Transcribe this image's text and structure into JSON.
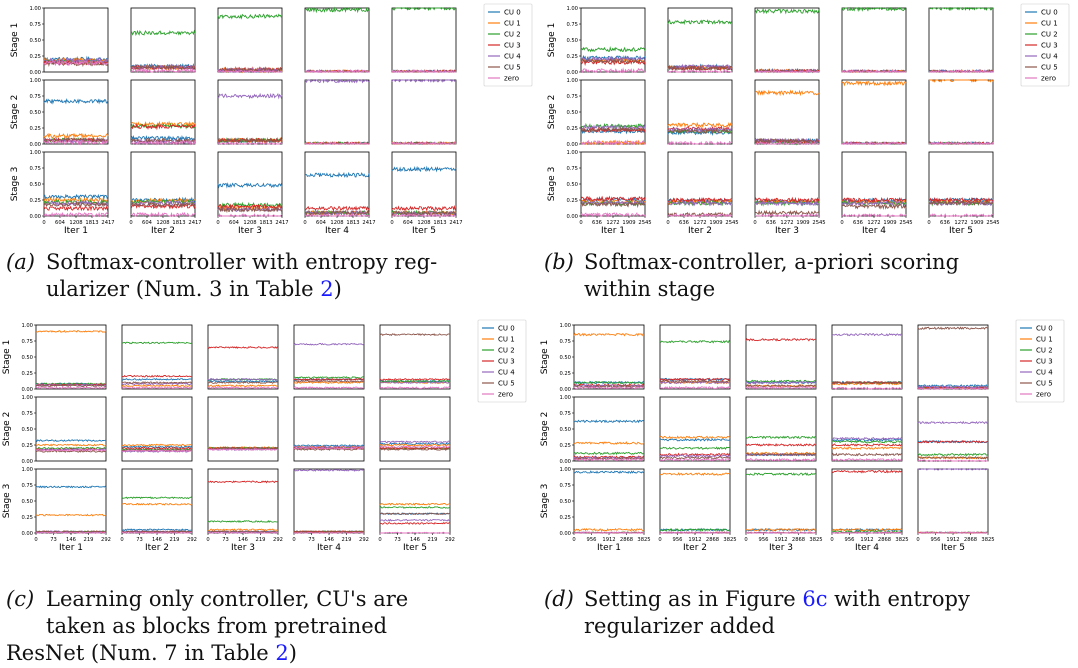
{
  "series_colors": [
    "#1f77b4",
    "#ff7f0e",
    "#2ca02c",
    "#d62728",
    "#9467bd",
    "#8c564b",
    "#e377c2"
  ],
  "legend": [
    "CU 0",
    "CU 1",
    "CU 2",
    "CU 3",
    "CU 4",
    "CU 5",
    "zero"
  ],
  "row_labels": [
    "Stage 1",
    "Stage 2",
    "Stage 3"
  ],
  "col_labels": [
    "Iter 1",
    "Iter 2",
    "Iter 3",
    "Iter 4",
    "Iter 5"
  ],
  "captions": [
    {
      "label": "(a)",
      "lines": [
        "Softmax-controller with entropy reg-",
        "ularizer (Num. 3 in Table 2)"
      ]
    },
    {
      "label": "(b)",
      "lines": [
        "Softmax-controller,  a-priori scoring",
        "within stage"
      ]
    },
    {
      "label": "(c)",
      "lines": [
        "Learning only controller, CU's are",
        "taken  as  blocks  from  pretrained",
        "ResNet (Num. 7 in Table 2)"
      ]
    },
    {
      "label": "(d)",
      "lines": [
        "Setting as in Figure 6c with entropy",
        "regularizer added"
      ]
    }
  ],
  "chart_data": [
    {
      "type": "line",
      "id": "a",
      "title": "Softmax-controller with entropy regularizer",
      "rows": [
        "Stage 1",
        "Stage 2",
        "Stage 3"
      ],
      "cols": [
        "Iter 1",
        "Iter 2",
        "Iter 3",
        "Iter 4",
        "Iter 5"
      ],
      "xticks": [
        "0",
        "604",
        "1208",
        "1813",
        "2417"
      ],
      "xmax": 2417,
      "yticks": [
        "0.00",
        "0.25",
        "0.50",
        "0.75",
        "1.00"
      ],
      "ylim": [
        0,
        1
      ],
      "noise": 0.015,
      "panels": [
        [
          [
            0.2,
            0.18,
            0.16,
            0.15,
            0.18,
            0.13,
            0.14
          ],
          [
            0.09,
            0.07,
            0.61,
            0.07,
            0.08,
            0.07,
            0.02
          ],
          [
            0.02,
            0.03,
            0.87,
            0.04,
            0.03,
            0.03,
            0.0
          ],
          [
            0.0,
            0.0,
            0.97,
            0.0,
            0.0,
            0.0,
            0.0
          ],
          [
            0.0,
            0.0,
            1.0,
            0.0,
            0.0,
            0.0,
            0.0
          ]
        ],
        [
          [
            0.67,
            0.13,
            0.06,
            0.06,
            0.05,
            0.06,
            0.03
          ],
          [
            0.09,
            0.31,
            0.28,
            0.27,
            0.04,
            0.05,
            0.02
          ],
          [
            0.05,
            0.06,
            0.06,
            0.06,
            0.75,
            0.05,
            0.0
          ],
          [
            0.0,
            0.0,
            0.0,
            0.0,
            0.99,
            0.0,
            0.0
          ],
          [
            0.0,
            0.0,
            0.0,
            0.0,
            1.0,
            0.0,
            0.0
          ]
        ],
        [
          [
            0.3,
            0.25,
            0.22,
            0.12,
            0.2,
            0.18,
            0.02
          ],
          [
            0.25,
            0.24,
            0.22,
            0.15,
            0.2,
            0.17,
            0.02
          ],
          [
            0.48,
            0.13,
            0.17,
            0.15,
            0.1,
            0.1,
            0.0
          ],
          [
            0.64,
            0.05,
            0.05,
            0.12,
            0.05,
            0.05,
            0.0
          ],
          [
            0.73,
            0.05,
            0.05,
            0.12,
            0.04,
            0.04,
            0.0
          ]
        ]
      ]
    },
    {
      "type": "line",
      "id": "b",
      "title": "Softmax-controller, a-priori scoring within stage",
      "rows": [
        "Stage 1",
        "Stage 2",
        "Stage 3"
      ],
      "cols": [
        "Iter 1",
        "Iter 2",
        "Iter 3",
        "Iter 4",
        "Iter 5"
      ],
      "xticks": [
        "0",
        "636",
        "1272",
        "1909",
        "2545"
      ],
      "xmax": 2545,
      "yticks": [
        "0.00",
        "0.25",
        "0.50",
        "0.75",
        "1.00"
      ],
      "ylim": [
        0,
        1
      ],
      "noise": 0.015,
      "panels": [
        [
          [
            0.22,
            0.18,
            0.35,
            0.15,
            0.2,
            0.17,
            0.02
          ],
          [
            0.08,
            0.07,
            0.78,
            0.06,
            0.08,
            0.06,
            0.0
          ],
          [
            0.01,
            0.01,
            0.95,
            0.01,
            0.01,
            0.01,
            0.0
          ],
          [
            0.0,
            0.0,
            0.99,
            0.0,
            0.0,
            0.0,
            0.0
          ],
          [
            0.0,
            0.0,
            1.0,
            0.0,
            0.0,
            0.0,
            0.0
          ]
        ],
        [
          [
            0.2,
            0.02,
            0.28,
            0.22,
            0.26,
            0.22,
            0.02
          ],
          [
            0.18,
            0.3,
            0.2,
            0.24,
            0.22,
            0.2,
            0.01
          ],
          [
            0.05,
            0.8,
            0.02,
            0.04,
            0.05,
            0.05,
            0.0
          ],
          [
            0.0,
            0.95,
            0.0,
            0.0,
            0.0,
            0.0,
            0.0
          ],
          [
            0.0,
            1.0,
            0.0,
            0.0,
            0.0,
            0.0,
            0.0
          ]
        ],
        [
          [
            0.25,
            0.22,
            0.2,
            0.27,
            0.2,
            0.18,
            0.02
          ],
          [
            0.24,
            0.22,
            0.2,
            0.25,
            0.2,
            0.02,
            0.0
          ],
          [
            0.23,
            0.22,
            0.2,
            0.25,
            0.2,
            0.05,
            0.0
          ],
          [
            0.24,
            0.22,
            0.2,
            0.25,
            0.2,
            0.15,
            0.0
          ],
          [
            0.25,
            0.22,
            0.2,
            0.25,
            0.2,
            0.2,
            0.0
          ]
        ]
      ]
    },
    {
      "type": "line",
      "id": "c",
      "title": "Learning only controller, CU's are taken as blocks from pretrained ResNet",
      "rows": [
        "Stage 1",
        "Stage 2",
        "Stage 3"
      ],
      "cols": [
        "Iter 1",
        "Iter 2",
        "Iter 3",
        "Iter 4",
        "Iter 5"
      ],
      "xticks": [
        "0",
        "73",
        "146",
        "219",
        "292"
      ],
      "xmax": 292,
      "yticks": [
        "0.00",
        "0.25",
        "0.50",
        "0.75",
        "1.00"
      ],
      "ylim": [
        0,
        1
      ],
      "noise": 0.006,
      "panels": [
        [
          [
            0.08,
            0.9,
            0.08,
            0.07,
            0.06,
            0.05,
            0.02
          ],
          [
            0.15,
            0.05,
            0.72,
            0.2,
            0.08,
            0.1,
            0.02
          ],
          [
            0.12,
            0.05,
            0.15,
            0.65,
            0.15,
            0.1,
            0.02
          ],
          [
            0.15,
            0.1,
            0.18,
            0.15,
            0.7,
            0.12,
            0.02
          ],
          [
            0.12,
            0.1,
            0.12,
            0.15,
            0.1,
            0.85,
            0.02
          ]
        ],
        [
          [
            0.32,
            0.25,
            0.2,
            0.18,
            0.18,
            0.15,
            0.17
          ],
          [
            0.22,
            0.25,
            0.18,
            0.2,
            0.15,
            0.17,
            0.16
          ],
          [
            0.2,
            0.21,
            0.2,
            0.2,
            0.18,
            0.2,
            0.18
          ],
          [
            0.24,
            0.22,
            0.2,
            0.2,
            0.22,
            0.18,
            0.2
          ],
          [
            0.27,
            0.25,
            0.2,
            0.2,
            0.3,
            0.18,
            0.22
          ]
        ],
        [
          [
            0.72,
            0.28,
            0.02,
            0.02,
            0.02,
            0.02,
            0.0
          ],
          [
            0.05,
            0.45,
            0.55,
            0.02,
            0.02,
            0.02,
            0.0
          ],
          [
            0.02,
            0.05,
            0.18,
            0.8,
            0.02,
            0.02,
            0.0
          ],
          [
            0.02,
            0.02,
            0.02,
            0.02,
            0.98,
            0.02,
            0.0
          ],
          [
            0.3,
            0.45,
            0.4,
            0.15,
            0.2,
            0.3,
            0.0
          ]
        ]
      ]
    },
    {
      "type": "line",
      "id": "d",
      "title": "Setting as in Figure 6c with entropy regularizer added",
      "rows": [
        "Stage 1",
        "Stage 2",
        "Stage 3"
      ],
      "cols": [
        "Iter 1",
        "Iter 2",
        "Iter 3",
        "Iter 4",
        "Iter 5"
      ],
      "xticks": [
        "0",
        "956",
        "1912",
        "2868",
        "3825"
      ],
      "xmax": 3825,
      "yticks": [
        "0.00",
        "0.25",
        "0.50",
        "0.75",
        "1.00"
      ],
      "ylim": [
        0,
        1
      ],
      "noise": 0.008,
      "panels": [
        [
          [
            0.1,
            0.85,
            0.1,
            0.06,
            0.05,
            0.04,
            0.02
          ],
          [
            0.15,
            0.1,
            0.74,
            0.15,
            0.1,
            0.12,
            0.02
          ],
          [
            0.1,
            0.05,
            0.12,
            0.77,
            0.1,
            0.05,
            0.02
          ],
          [
            0.1,
            0.08,
            0.1,
            0.1,
            0.85,
            0.1,
            0.01
          ],
          [
            0.05,
            0.02,
            0.02,
            0.02,
            0.03,
            0.95,
            0.0
          ]
        ],
        [
          [
            0.62,
            0.28,
            0.12,
            0.06,
            0.05,
            0.04,
            0.02
          ],
          [
            0.33,
            0.37,
            0.2,
            0.1,
            0.08,
            0.05,
            0.02
          ],
          [
            0.1,
            0.12,
            0.37,
            0.25,
            0.1,
            0.1,
            0.02
          ],
          [
            0.33,
            0.2,
            0.3,
            0.25,
            0.35,
            0.1,
            0.02
          ],
          [
            0.3,
            0.05,
            0.1,
            0.3,
            0.6,
            0.05,
            0.0
          ]
        ],
        [
          [
            0.95,
            0.05,
            0.0,
            0.0,
            0.0,
            0.0,
            0.0
          ],
          [
            0.05,
            0.92,
            0.05,
            0.0,
            0.0,
            0.0,
            0.0
          ],
          [
            0.05,
            0.05,
            0.92,
            0.0,
            0.0,
            0.0,
            0.0
          ],
          [
            0.05,
            0.05,
            0.02,
            0.96,
            0.0,
            0.0,
            0.0
          ],
          [
            0.0,
            0.0,
            0.0,
            0.0,
            1.0,
            0.0,
            0.0
          ]
        ]
      ]
    }
  ]
}
